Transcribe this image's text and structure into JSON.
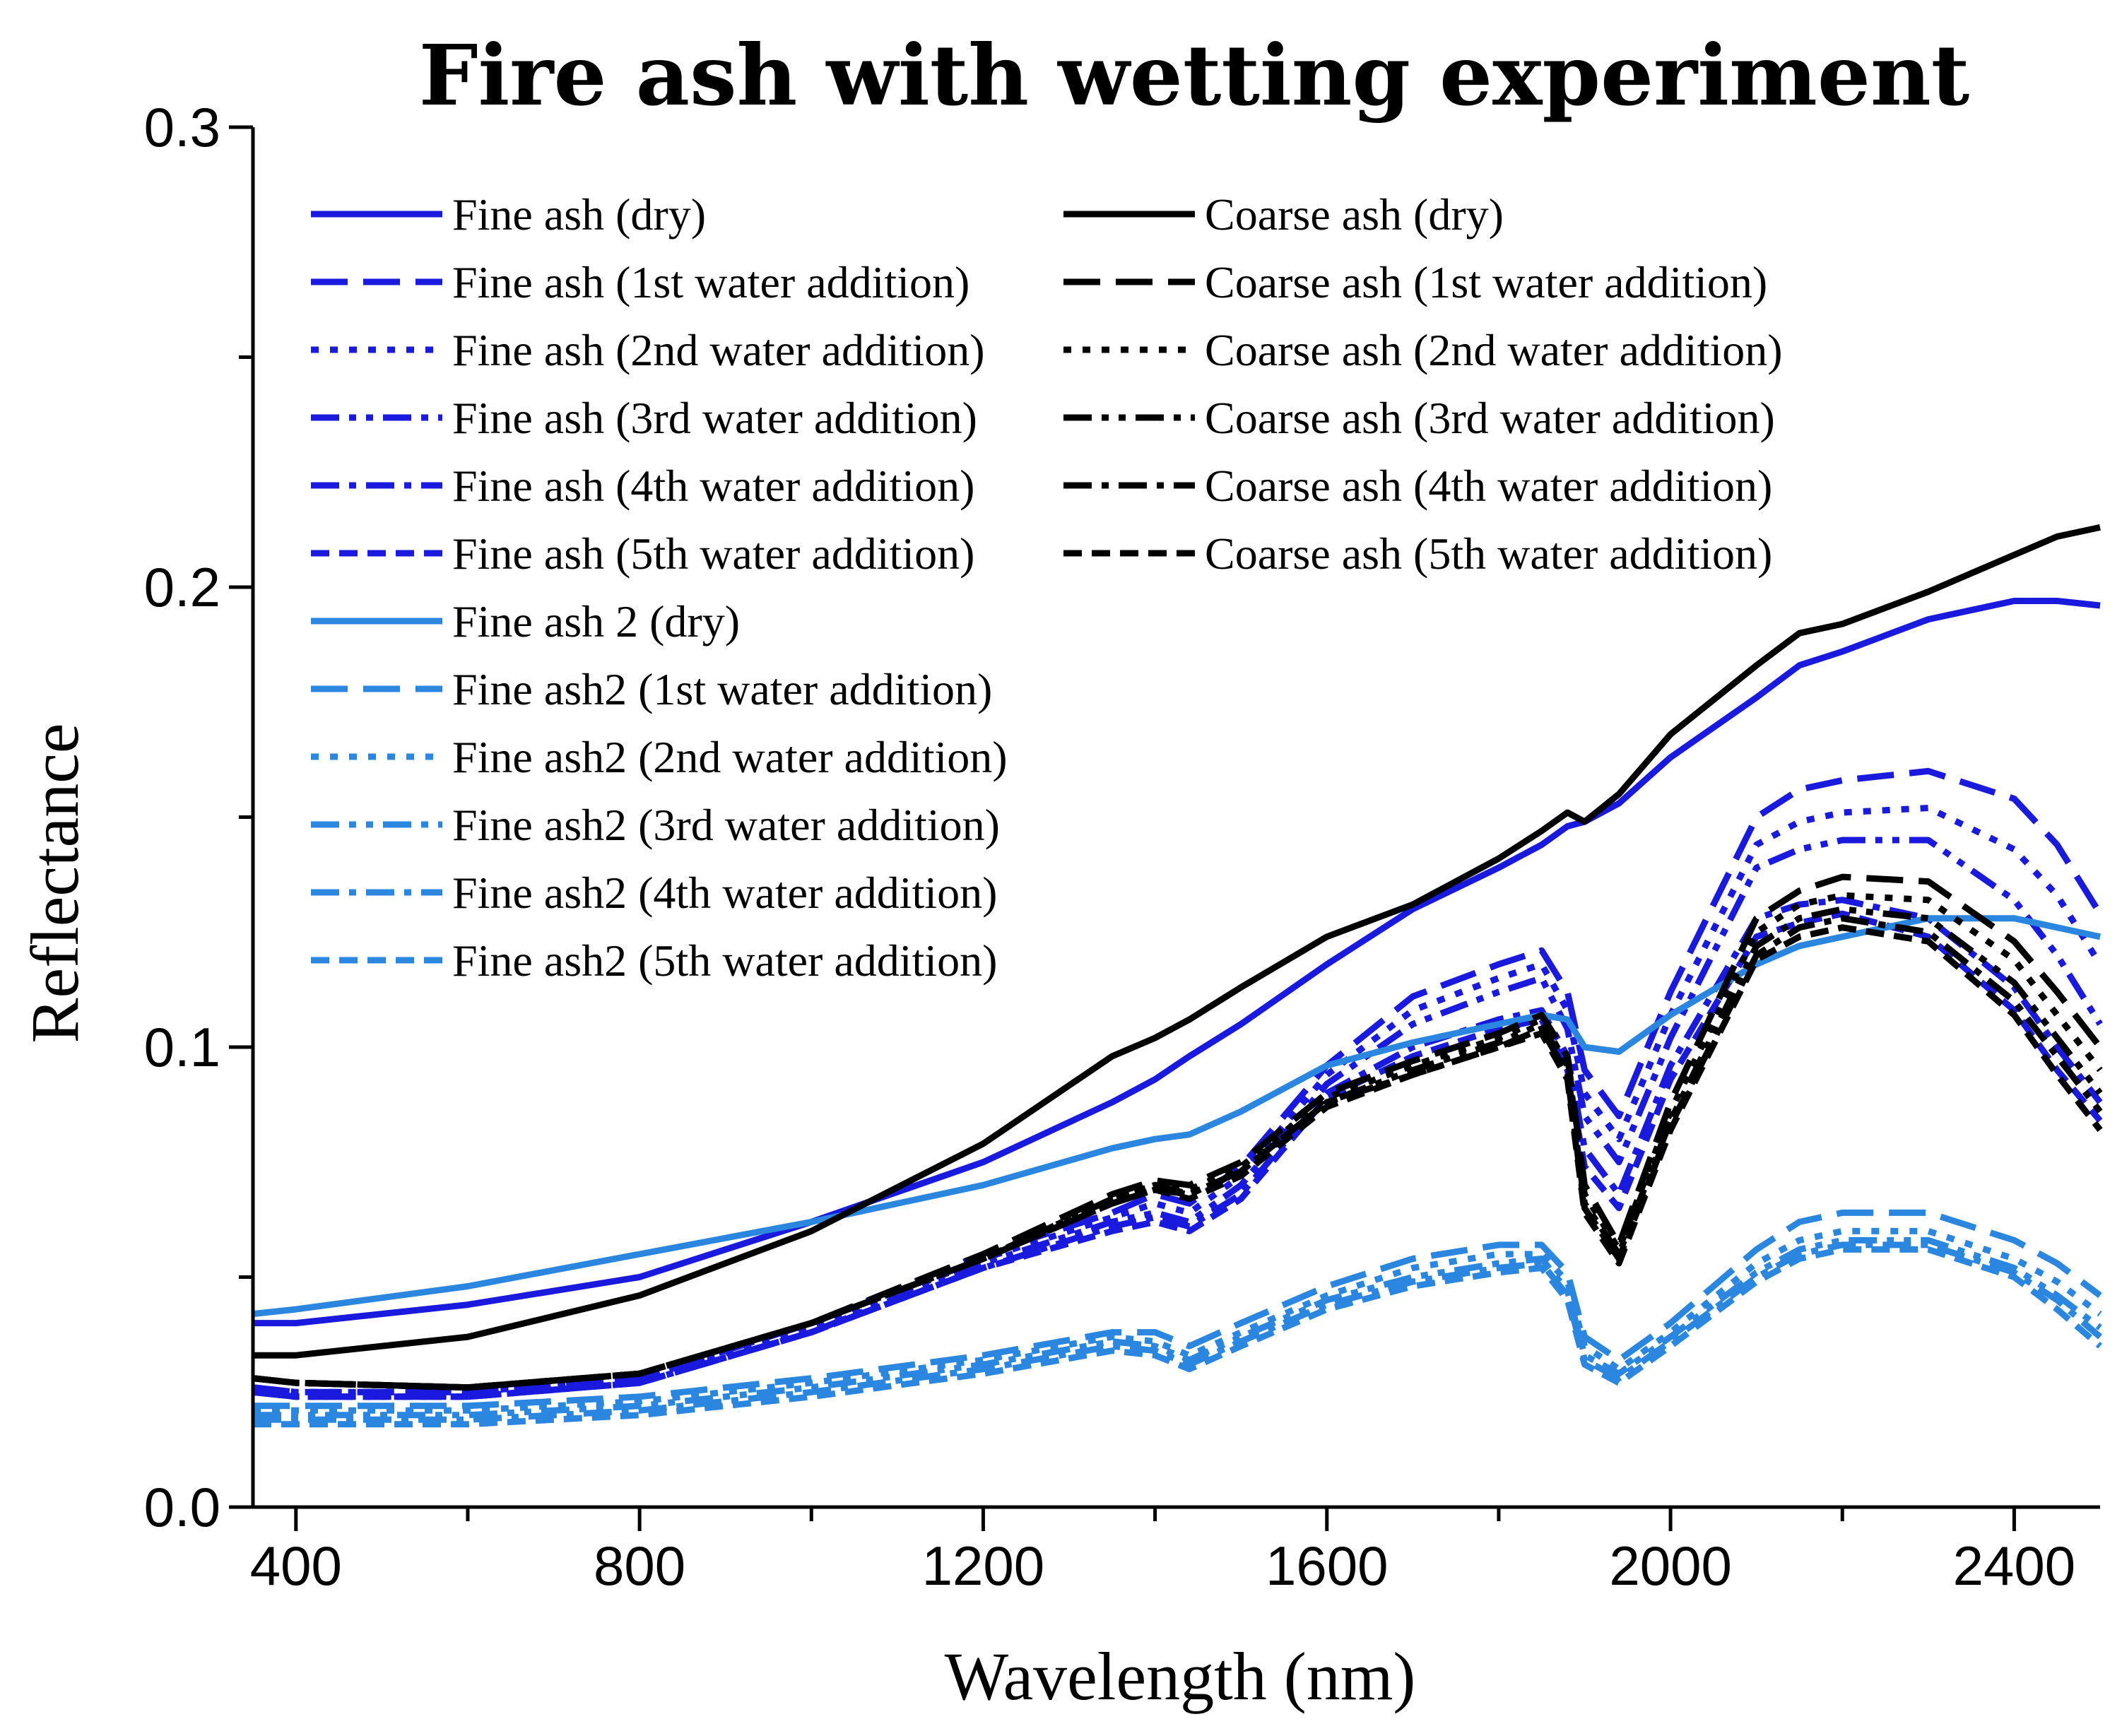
{
  "chart_data": {
    "type": "line",
    "title": "Fire ash with wetting experiment",
    "xlabel": "Wavelength (nm)",
    "ylabel": "Reflectance",
    "xlim": [
      350,
      2500
    ],
    "ylim": [
      0.0,
      0.3
    ],
    "xticks": [
      400,
      800,
      1200,
      1600,
      2000,
      2400
    ],
    "xtick_labels": [
      "400",
      "800",
      "1200",
      "1600",
      "2000",
      "2400"
    ],
    "yticks": [
      0.0,
      0.1,
      0.2,
      0.3
    ],
    "ytick_labels": [
      "0.0",
      "0.1",
      "0.2",
      "0.3"
    ],
    "colors": {
      "fine": "#1a1adf",
      "coarse": "#000000",
      "fine2": "#2b86e0"
    },
    "legend_location": "top-left",
    "x": [
      350,
      400,
      600,
      800,
      1000,
      1200,
      1350,
      1400,
      1440,
      1500,
      1600,
      1700,
      1800,
      1850,
      1880,
      1900,
      1940,
      2000,
      2100,
      2150,
      2200,
      2300,
      2400,
      2450,
      2500
    ],
    "series": [
      {
        "name": "Fine ash (dry)",
        "group": "fine",
        "dash": "solid",
        "values": [
          0.04,
          0.04,
          0.044,
          0.05,
          0.062,
          0.075,
          0.088,
          0.093,
          0.098,
          0.105,
          0.118,
          0.13,
          0.139,
          0.144,
          0.148,
          0.149,
          0.153,
          0.163,
          0.176,
          0.183,
          0.186,
          0.193,
          0.197,
          0.197,
          0.196
        ]
      },
      {
        "name": "Fine ash (1st water addition)",
        "group": "fine",
        "dash": "long",
        "values": [
          0.026,
          0.025,
          0.025,
          0.028,
          0.04,
          0.055,
          0.064,
          0.068,
          0.066,
          0.074,
          0.096,
          0.111,
          0.118,
          0.121,
          0.112,
          0.095,
          0.085,
          0.112,
          0.15,
          0.156,
          0.158,
          0.16,
          0.154,
          0.144,
          0.129
        ]
      },
      {
        "name": "Fine ash (2nd water addition)",
        "group": "fine",
        "dash": "dot",
        "values": [
          0.026,
          0.025,
          0.025,
          0.028,
          0.039,
          0.054,
          0.063,
          0.066,
          0.064,
          0.072,
          0.094,
          0.108,
          0.115,
          0.118,
          0.108,
          0.09,
          0.08,
          0.107,
          0.144,
          0.149,
          0.151,
          0.152,
          0.143,
          0.133,
          0.118
        ]
      },
      {
        "name": "Fine ash (3rd water addition)",
        "group": "fine",
        "dash": "dashdotdot",
        "values": [
          0.025,
          0.024,
          0.024,
          0.027,
          0.038,
          0.053,
          0.062,
          0.064,
          0.062,
          0.07,
          0.092,
          0.105,
          0.112,
          0.115,
          0.104,
          0.085,
          0.075,
          0.102,
          0.139,
          0.143,
          0.145,
          0.145,
          0.132,
          0.12,
          0.105
        ]
      },
      {
        "name": "Fine ash (4th water addition)",
        "group": "fine",
        "dash": "dashdot",
        "values": [
          0.025,
          0.024,
          0.024,
          0.027,
          0.038,
          0.052,
          0.061,
          0.063,
          0.061,
          0.068,
          0.09,
          0.1,
          0.106,
          0.108,
          0.098,
          0.078,
          0.068,
          0.096,
          0.128,
          0.131,
          0.132,
          0.128,
          0.113,
          0.1,
          0.088
        ]
      },
      {
        "name": "Fine ash (5th water addition)",
        "group": "fine",
        "dash": "short",
        "values": [
          0.025,
          0.024,
          0.024,
          0.027,
          0.038,
          0.052,
          0.06,
          0.062,
          0.06,
          0.067,
          0.089,
          0.098,
          0.104,
          0.106,
          0.095,
          0.074,
          0.065,
          0.093,
          0.124,
          0.127,
          0.129,
          0.124,
          0.108,
          0.095,
          0.084
        ]
      },
      {
        "name": "Fine ash 2 (dry)",
        "group": "fine2",
        "dash": "solid",
        "values": [
          0.042,
          0.043,
          0.048,
          0.055,
          0.062,
          0.07,
          0.078,
          0.08,
          0.081,
          0.086,
          0.096,
          0.101,
          0.105,
          0.107,
          0.106,
          0.1,
          0.099,
          0.107,
          0.118,
          0.122,
          0.124,
          0.128,
          0.128,
          0.126,
          0.124
        ]
      },
      {
        "name": "Fine ash2 (1st water addition)",
        "group": "fine2",
        "dash": "long",
        "values": [
          0.022,
          0.022,
          0.022,
          0.024,
          0.028,
          0.033,
          0.038,
          0.038,
          0.035,
          0.04,
          0.048,
          0.054,
          0.057,
          0.057,
          0.051,
          0.037,
          0.032,
          0.04,
          0.056,
          0.062,
          0.064,
          0.064,
          0.058,
          0.053,
          0.046
        ]
      },
      {
        "name": "Fine ash2 (2nd water addition)",
        "group": "fine2",
        "dash": "dot",
        "values": [
          0.021,
          0.021,
          0.021,
          0.023,
          0.027,
          0.032,
          0.037,
          0.036,
          0.033,
          0.038,
          0.046,
          0.052,
          0.055,
          0.055,
          0.049,
          0.035,
          0.03,
          0.038,
          0.053,
          0.058,
          0.06,
          0.06,
          0.054,
          0.049,
          0.042
        ]
      },
      {
        "name": "Fine ash2 (3rd water addition)",
        "group": "fine2",
        "dash": "dashdotdot",
        "values": [
          0.02,
          0.02,
          0.02,
          0.022,
          0.026,
          0.031,
          0.036,
          0.035,
          0.032,
          0.037,
          0.045,
          0.05,
          0.053,
          0.054,
          0.047,
          0.033,
          0.029,
          0.037,
          0.051,
          0.056,
          0.058,
          0.058,
          0.052,
          0.046,
          0.039
        ]
      },
      {
        "name": "Fine ash2 (4th water addition)",
        "group": "fine2",
        "dash": "dashdot",
        "values": [
          0.019,
          0.019,
          0.019,
          0.021,
          0.025,
          0.03,
          0.035,
          0.034,
          0.031,
          0.036,
          0.044,
          0.049,
          0.052,
          0.053,
          0.046,
          0.032,
          0.028,
          0.036,
          0.05,
          0.055,
          0.057,
          0.057,
          0.051,
          0.045,
          0.037
        ]
      },
      {
        "name": "Fine ash2 (5th water addition)",
        "group": "fine2",
        "dash": "short",
        "values": [
          0.018,
          0.018,
          0.018,
          0.02,
          0.024,
          0.029,
          0.034,
          0.033,
          0.03,
          0.035,
          0.043,
          0.048,
          0.051,
          0.052,
          0.045,
          0.031,
          0.027,
          0.035,
          0.049,
          0.054,
          0.056,
          0.056,
          0.05,
          0.043,
          0.035
        ]
      },
      {
        "name": "Coarse ash (dry)",
        "group": "coarse",
        "dash": "solid",
        "values": [
          0.033,
          0.033,
          0.037,
          0.046,
          0.06,
          0.079,
          0.098,
          0.102,
          0.106,
          0.113,
          0.124,
          0.131,
          0.141,
          0.147,
          0.151,
          0.149,
          0.155,
          0.168,
          0.183,
          0.19,
          0.192,
          0.199,
          0.207,
          0.211,
          0.213
        ]
      },
      {
        "name": "Coarse ash (1st water addition)",
        "group": "coarse",
        "dash": "long",
        "values": [
          0.028,
          0.027,
          0.026,
          0.029,
          0.04,
          0.055,
          0.068,
          0.071,
          0.07,
          0.075,
          0.09,
          0.097,
          0.103,
          0.107,
          0.098,
          0.07,
          0.057,
          0.088,
          0.128,
          0.134,
          0.137,
          0.136,
          0.123,
          0.112,
          0.1
        ]
      },
      {
        "name": "Coarse ash (2nd water addition)",
        "group": "coarse",
        "dash": "dot",
        "values": [
          0.028,
          0.027,
          0.026,
          0.029,
          0.04,
          0.054,
          0.067,
          0.07,
          0.069,
          0.074,
          0.089,
          0.096,
          0.102,
          0.106,
          0.096,
          0.068,
          0.056,
          0.086,
          0.125,
          0.131,
          0.133,
          0.132,
          0.119,
          0.107,
          0.095
        ]
      },
      {
        "name": "Coarse ash (3rd water addition)",
        "group": "coarse",
        "dash": "dashdotdot",
        "values": [
          0.028,
          0.027,
          0.026,
          0.029,
          0.04,
          0.054,
          0.067,
          0.07,
          0.068,
          0.073,
          0.088,
          0.095,
          0.101,
          0.105,
          0.095,
          0.066,
          0.055,
          0.084,
          0.122,
          0.128,
          0.13,
          0.128,
          0.114,
          0.102,
          0.09
        ]
      },
      {
        "name": "Coarse ash (4th water addition)",
        "group": "coarse",
        "dash": "dashdot",
        "values": [
          0.028,
          0.027,
          0.026,
          0.029,
          0.04,
          0.054,
          0.066,
          0.069,
          0.068,
          0.073,
          0.088,
          0.094,
          0.1,
          0.104,
          0.094,
          0.065,
          0.054,
          0.083,
          0.12,
          0.126,
          0.128,
          0.125,
          0.11,
          0.098,
          0.086
        ]
      },
      {
        "name": "Coarse ash (5th water addition)",
        "group": "coarse",
        "dash": "short",
        "values": [
          0.028,
          0.027,
          0.026,
          0.029,
          0.04,
          0.054,
          0.066,
          0.069,
          0.067,
          0.072,
          0.087,
          0.094,
          0.1,
          0.103,
          0.093,
          0.064,
          0.053,
          0.082,
          0.119,
          0.124,
          0.126,
          0.123,
          0.107,
          0.094,
          0.082
        ]
      }
    ],
    "legend_columns": [
      [
        "Fine ash (dry)",
        "Fine ash (1st water addition)",
        "Fine ash (2nd water addition)",
        "Fine ash (3rd water addition)",
        "Fine ash (4th water addition)",
        "Fine ash (5th water addition)",
        "Fine ash 2 (dry)",
        "Fine ash2 (1st water addition)",
        "Fine ash2 (2nd water addition)",
        "Fine ash2 (3rd water addition)",
        "Fine ash2 (4th water addition)",
        "Fine ash2 (5th water addition)"
      ],
      [
        "Coarse ash (dry)",
        "Coarse ash (1st water addition)",
        "Coarse ash (2nd water addition)",
        "Coarse ash (3rd water addition)",
        "Coarse ash (4th water addition)",
        "Coarse ash (5th water addition)"
      ]
    ]
  }
}
